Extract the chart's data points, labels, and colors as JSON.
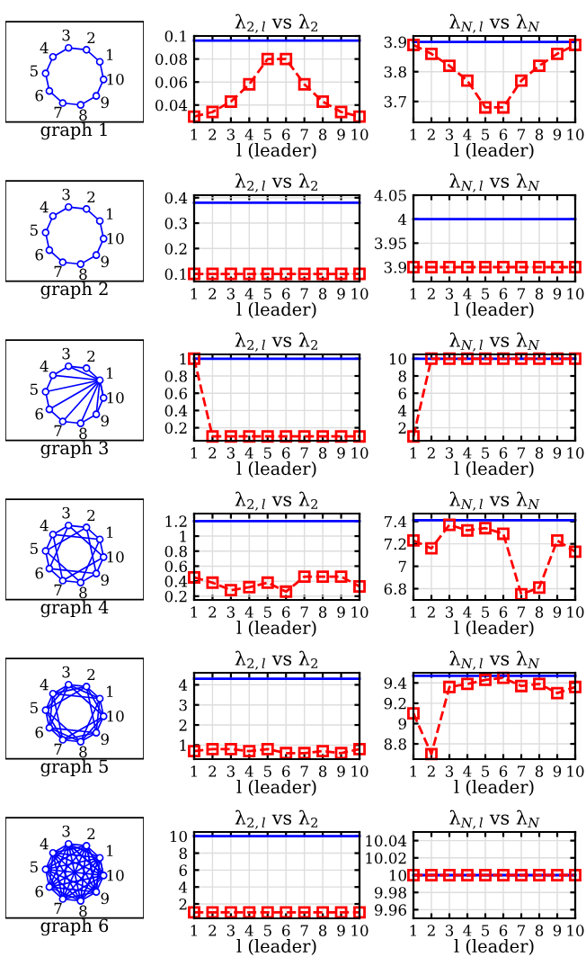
{
  "chart_data": [
    {
      "type": "other",
      "annotations": [
        "1",
        "2",
        "3",
        "4",
        "5",
        "6",
        "7",
        "8",
        "9",
        "10",
        "graph 1"
      ]
    },
    {
      "type": "line",
      "title": "λ$_{2,l}$ vs λ$_{2}$",
      "xlabel": "l (leader)",
      "x": [
        1,
        2,
        3,
        4,
        5,
        6,
        7,
        8,
        9,
        10
      ],
      "xlim": [
        1,
        10
      ],
      "xticks": [
        1,
        2,
        3,
        4,
        5,
        6,
        7,
        8,
        9,
        10
      ],
      "ylim": [
        0.025,
        0.1
      ],
      "yticks": [
        0.04,
        0.06,
        0.08,
        0.1
      ],
      "grid": true,
      "series": [
        {
          "type": "line",
          "color": "#0000ff",
          "values": [
            0.096,
            0.096,
            0.096,
            0.096,
            0.096,
            0.096,
            0.096,
            0.096,
            0.096,
            0.096
          ],
          "marker": "none",
          "line_style": "solid"
        },
        {
          "type": "line",
          "color": "#ff0000",
          "values": [
            0.03,
            0.034,
            0.043,
            0.058,
            0.08,
            0.08,
            0.058,
            0.043,
            0.034,
            0.03
          ],
          "marker": "square",
          "line_style": "dashed"
        }
      ]
    },
    {
      "type": "line",
      "title": "λ$_{N,l}$ vs λ$_{N}$",
      "xlabel": "l (leader)",
      "x": [
        1,
        2,
        3,
        4,
        5,
        6,
        7,
        8,
        9,
        10
      ],
      "xlim": [
        1,
        10
      ],
      "xticks": [
        1,
        2,
        3,
        4,
        5,
        6,
        7,
        8,
        9,
        10
      ],
      "ylim": [
        3.63,
        3.92
      ],
      "yticks": [
        3.7,
        3.8,
        3.9
      ],
      "grid": true,
      "series": [
        {
          "type": "line",
          "color": "#0000ff",
          "values": [
            3.9,
            3.9,
            3.9,
            3.9,
            3.9,
            3.9,
            3.9,
            3.9,
            3.9,
            3.9
          ],
          "marker": "none",
          "line_style": "solid"
        },
        {
          "type": "line",
          "color": "#ff0000",
          "values": [
            3.89,
            3.86,
            3.82,
            3.77,
            3.68,
            3.68,
            3.77,
            3.82,
            3.86,
            3.89
          ],
          "marker": "square",
          "line_style": "dashed"
        }
      ]
    },
    {
      "type": "other",
      "annotations": [
        "1",
        "2",
        "3",
        "4",
        "5",
        "6",
        "7",
        "8",
        "9",
        "10",
        "graph 2"
      ]
    },
    {
      "type": "line",
      "title": "λ$_{2,l}$ vs λ$_{2}$",
      "xlabel": "l (leader)",
      "x": [
        1,
        2,
        3,
        4,
        5,
        6,
        7,
        8,
        9,
        10
      ],
      "xlim": [
        1,
        10
      ],
      "xticks": [
        1,
        2,
        3,
        4,
        5,
        6,
        7,
        8,
        9,
        10
      ],
      "ylim": [
        0.07,
        0.41
      ],
      "yticks": [
        0.1,
        0.2,
        0.3,
        0.4
      ],
      "grid": true,
      "series": [
        {
          "type": "line",
          "color": "#0000ff",
          "values": [
            0.38,
            0.38,
            0.38,
            0.38,
            0.38,
            0.38,
            0.38,
            0.38,
            0.38,
            0.38
          ],
          "marker": "none",
          "line_style": "solid"
        },
        {
          "type": "line",
          "color": "#ff0000",
          "values": [
            0.1,
            0.1,
            0.1,
            0.1,
            0.1,
            0.1,
            0.1,
            0.1,
            0.1,
            0.1
          ],
          "marker": "square",
          "line_style": "dashed"
        }
      ]
    },
    {
      "type": "line",
      "title": "λ$_{N,l}$ vs λ$_{N}$",
      "xlabel": "l (leader)",
      "x": [
        1,
        2,
        3,
        4,
        5,
        6,
        7,
        8,
        9,
        10
      ],
      "xlim": [
        1,
        10
      ],
      "xticks": [
        1,
        2,
        3,
        4,
        5,
        6,
        7,
        8,
        9,
        10
      ],
      "ylim": [
        3.87,
        4.05
      ],
      "yticks": [
        3.9,
        3.95,
        4,
        4.05
      ],
      "grid": true,
      "series": [
        {
          "type": "line",
          "color": "#0000ff",
          "values": [
            4,
            4,
            4,
            4,
            4,
            4,
            4,
            4,
            4,
            4
          ],
          "marker": "none",
          "line_style": "solid"
        },
        {
          "type": "line",
          "color": "#ff0000",
          "values": [
            3.9,
            3.9,
            3.9,
            3.9,
            3.9,
            3.9,
            3.9,
            3.9,
            3.9,
            3.9
          ],
          "marker": "square",
          "line_style": "dashed"
        }
      ]
    },
    {
      "type": "other",
      "annotations": [
        "1",
        "2",
        "3",
        "4",
        "5",
        "6",
        "7",
        "8",
        "9",
        "10",
        "graph 3"
      ]
    },
    {
      "type": "line",
      "title": "λ$_{2,l}$ vs λ$_{2}$",
      "xlabel": "l (leader)",
      "x": [
        1,
        2,
        3,
        4,
        5,
        6,
        7,
        8,
        9,
        10
      ],
      "xlim": [
        1,
        10
      ],
      "xticks": [
        1,
        2,
        3,
        4,
        5,
        6,
        7,
        8,
        9,
        10
      ],
      "ylim": [
        0.05,
        1.05
      ],
      "yticks": [
        0.2,
        0.4,
        0.6,
        0.8,
        1
      ],
      "grid": true,
      "series": [
        {
          "type": "line",
          "color": "#0000ff",
          "values": [
            1,
            1,
            1,
            1,
            1,
            1,
            1,
            1,
            1,
            1
          ],
          "marker": "none",
          "line_style": "solid"
        },
        {
          "type": "line",
          "color": "#ff0000",
          "values": [
            1,
            0.1,
            0.1,
            0.1,
            0.1,
            0.1,
            0.1,
            0.1,
            0.1,
            0.1
          ],
          "marker": "square",
          "line_style": "dashed"
        }
      ]
    },
    {
      "type": "line",
      "title": "λ$_{N,l}$ vs λ$_{N}$",
      "xlabel": "l (leader)",
      "x": [
        1,
        2,
        3,
        4,
        5,
        6,
        7,
        8,
        9,
        10
      ],
      "xlim": [
        1,
        10
      ],
      "xticks": [
        1,
        2,
        3,
        4,
        5,
        6,
        7,
        8,
        9,
        10
      ],
      "ylim": [
        0.5,
        10.5
      ],
      "yticks": [
        2,
        4,
        6,
        8,
        10
      ],
      "grid": true,
      "series": [
        {
          "type": "line",
          "color": "#0000ff",
          "values": [
            10,
            10,
            10,
            10,
            10,
            10,
            10,
            10,
            10,
            10
          ],
          "marker": "none",
          "line_style": "solid"
        },
        {
          "type": "line",
          "color": "#ff0000",
          "values": [
            1,
            10,
            10,
            10,
            10,
            10,
            10,
            10,
            10,
            10
          ],
          "marker": "square",
          "line_style": "dashed"
        }
      ]
    },
    {
      "type": "other",
      "annotations": [
        "1",
        "2",
        "3",
        "4",
        "5",
        "6",
        "7",
        "8",
        "9",
        "10",
        "graph 4"
      ]
    },
    {
      "type": "line",
      "title": "λ$_{2,l}$ vs λ$_{2}$",
      "xlabel": "l (leader)",
      "x": [
        1,
        2,
        3,
        4,
        5,
        6,
        7,
        8,
        9,
        10
      ],
      "xlim": [
        1,
        10
      ],
      "xticks": [
        1,
        2,
        3,
        4,
        5,
        6,
        7,
        8,
        9,
        10
      ],
      "ylim": [
        0.15,
        1.3
      ],
      "yticks": [
        0.2,
        0.4,
        0.6,
        0.8,
        1,
        1.2
      ],
      "grid": true,
      "series": [
        {
          "type": "line",
          "color": "#0000ff",
          "values": [
            1.2,
            1.2,
            1.2,
            1.2,
            1.2,
            1.2,
            1.2,
            1.2,
            1.2,
            1.2
          ],
          "marker": "none",
          "line_style": "solid"
        },
        {
          "type": "line",
          "color": "#ff0000",
          "values": [
            0.45,
            0.38,
            0.28,
            0.32,
            0.38,
            0.26,
            0.46,
            0.46,
            0.46,
            0.33
          ],
          "marker": "square",
          "line_style": "dashed"
        }
      ]
    },
    {
      "type": "line",
      "title": "λ$_{N,l}$ vs λ$_{N}$",
      "xlabel": "l (leader)",
      "x": [
        1,
        2,
        3,
        4,
        5,
        6,
        7,
        8,
        9,
        10
      ],
      "xlim": [
        1,
        10
      ],
      "xticks": [
        1,
        2,
        3,
        4,
        5,
        6,
        7,
        8,
        9,
        10
      ],
      "ylim": [
        6.7,
        7.47
      ],
      "yticks": [
        6.8,
        7,
        7.2,
        7.4
      ],
      "grid": true,
      "series": [
        {
          "type": "line",
          "color": "#0000ff",
          "values": [
            7.41,
            7.41,
            7.41,
            7.41,
            7.41,
            7.41,
            7.41,
            7.41,
            7.41,
            7.41
          ],
          "marker": "none",
          "line_style": "solid"
        },
        {
          "type": "line",
          "color": "#ff0000",
          "values": [
            7.23,
            7.16,
            7.37,
            7.32,
            7.34,
            7.29,
            6.75,
            6.81,
            7.23,
            7.13
          ],
          "marker": "square",
          "line_style": "dashed"
        }
      ]
    },
    {
      "type": "other",
      "annotations": [
        "1",
        "2",
        "3",
        "4",
        "5",
        "6",
        "7",
        "8",
        "9",
        "10",
        "graph 5"
      ]
    },
    {
      "type": "line",
      "title": "λ$_{2,l}$ vs λ$_{2}$",
      "xlabel": "l (leader)",
      "x": [
        1,
        2,
        3,
        4,
        5,
        6,
        7,
        8,
        9,
        10
      ],
      "xlim": [
        1,
        10
      ],
      "xticks": [
        1,
        2,
        3,
        4,
        5,
        6,
        7,
        8,
        9,
        10
      ],
      "ylim": [
        0.3,
        4.6
      ],
      "yticks": [
        1,
        2,
        3,
        4
      ],
      "grid": true,
      "series": [
        {
          "type": "line",
          "color": "#0000ff",
          "values": [
            4.3,
            4.3,
            4.3,
            4.3,
            4.3,
            4.3,
            4.3,
            4.3,
            4.3,
            4.3
          ],
          "marker": "none",
          "line_style": "solid"
        },
        {
          "type": "line",
          "color": "#ff0000",
          "values": [
            0.7,
            0.8,
            0.8,
            0.7,
            0.8,
            0.6,
            0.6,
            0.7,
            0.6,
            0.8
          ],
          "marker": "square",
          "line_style": "dashed"
        }
      ]
    },
    {
      "type": "line",
      "title": "λ$_{N,l}$ vs λ$_{N}$",
      "xlabel": "l (leader)",
      "x": [
        1,
        2,
        3,
        4,
        5,
        6,
        7,
        8,
        9,
        10
      ],
      "xlim": [
        1,
        10
      ],
      "xticks": [
        1,
        2,
        3,
        4,
        5,
        6,
        7,
        8,
        9,
        10
      ],
      "ylim": [
        8.65,
        9.5
      ],
      "yticks": [
        8.8,
        9,
        9.2,
        9.4
      ],
      "grid": true,
      "series": [
        {
          "type": "line",
          "color": "#0000ff",
          "values": [
            9.47,
            9.47,
            9.47,
            9.47,
            9.47,
            9.47,
            9.47,
            9.47,
            9.47,
            9.47
          ],
          "marker": "none",
          "line_style": "solid"
        },
        {
          "type": "line",
          "color": "#ff0000",
          "values": [
            9.1,
            8.7,
            9.36,
            9.39,
            9.43,
            9.45,
            9.37,
            9.39,
            9.3,
            9.36
          ],
          "marker": "square",
          "line_style": "dashed"
        }
      ]
    },
    {
      "type": "other",
      "annotations": [
        "1",
        "2",
        "3",
        "4",
        "5",
        "6",
        "7",
        "8",
        "9",
        "10",
        "graph 6"
      ]
    },
    {
      "type": "line",
      "title": "λ$_{2,l}$ vs λ$_{2}$",
      "xlabel": "l (leader)",
      "x": [
        1,
        2,
        3,
        4,
        5,
        6,
        7,
        8,
        9,
        10
      ],
      "xlim": [
        1,
        10
      ],
      "xticks": [
        1,
        2,
        3,
        4,
        5,
        6,
        7,
        8,
        9,
        10
      ],
      "ylim": [
        0.3,
        10.5
      ],
      "yticks": [
        2,
        4,
        6,
        8,
        10
      ],
      "grid": true,
      "series": [
        {
          "type": "line",
          "color": "#0000ff",
          "values": [
            10,
            10,
            10,
            10,
            10,
            10,
            10,
            10,
            10,
            10
          ],
          "marker": "none",
          "line_style": "solid"
        },
        {
          "type": "line",
          "color": "#ff0000",
          "values": [
            1,
            1,
            1,
            1,
            1,
            1,
            1,
            1,
            1,
            1
          ],
          "marker": "square",
          "line_style": "dashed"
        }
      ]
    },
    {
      "type": "line",
      "title": "λ$_{N,l}$ vs λ$_{N}$",
      "xlabel": "l (leader)",
      "x": [
        1,
        2,
        3,
        4,
        5,
        6,
        7,
        8,
        9,
        10
      ],
      "xlim": [
        1,
        10
      ],
      "xticks": [
        1,
        2,
        3,
        4,
        5,
        6,
        7,
        8,
        9,
        10
      ],
      "ylim": [
        9.95,
        10.05
      ],
      "yticks": [
        9.96,
        9.98,
        10,
        10.02,
        10.04
      ],
      "grid": true,
      "series": [
        {
          "type": "line",
          "color": "#0000ff",
          "values": [
            10,
            10,
            10,
            10,
            10,
            10,
            10,
            10,
            10,
            10
          ],
          "marker": "none",
          "line_style": "solid"
        },
        {
          "type": "line",
          "color": "#ff0000",
          "values": [
            10,
            10,
            10,
            10,
            10,
            10,
            10,
            10,
            10,
            10
          ],
          "marker": "square",
          "line_style": "dashed"
        }
      ]
    }
  ]
}
